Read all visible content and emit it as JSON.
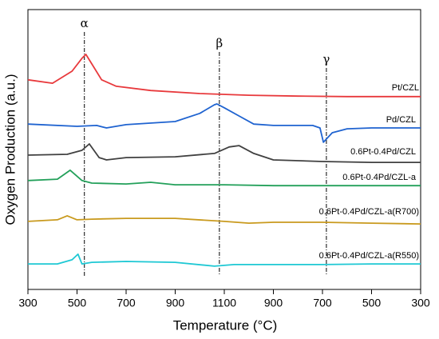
{
  "chart_data": {
    "type": "line",
    "xlabel": "Temperature (°C)",
    "ylabel": "Oxygen Production (a.u.)",
    "xlim": [
      0,
      8
    ],
    "ylim": [
      0,
      100
    ],
    "xticks": [
      {
        "value": 0,
        "label": "300"
      },
      {
        "value": 1,
        "label": "500"
      },
      {
        "value": 2,
        "label": "700"
      },
      {
        "value": 3,
        "label": "900"
      },
      {
        "value": 4,
        "label": "1100"
      },
      {
        "value": 5,
        "label": "900"
      },
      {
        "value": 6,
        "label": "700"
      },
      {
        "value": 7,
        "label": "500"
      },
      {
        "value": 8,
        "label": "300"
      }
    ],
    "annotations": [
      {
        "text": "α",
        "x": 1.15
      },
      {
        "text": "β",
        "x": 3.9
      },
      {
        "text": "γ",
        "x": 6.08
      }
    ],
    "series": [
      {
        "name": "Pt/CZL",
        "color": "#e8393c",
        "x": [
          0,
          0.5,
          0.9,
          1.1,
          1.18,
          1.3,
          1.5,
          1.8,
          2.5,
          3.5,
          4.5,
          5.5,
          6.5,
          7.5,
          8
        ],
        "values": [
          74.9,
          73.7,
          78,
          82.6,
          84,
          80.6,
          74.9,
          72.6,
          71.1,
          70,
          69.4,
          69.1,
          68.9,
          68.9,
          68.9
        ]
      },
      {
        "name": "Pd/CZL",
        "color": "#1f63d0",
        "x": [
          0,
          1,
          1.4,
          1.6,
          2,
          3,
          3.5,
          3.8,
          3.85,
          4,
          4.3,
          4.6,
          5,
          5.8,
          5.95,
          6.02,
          6.2,
          6.5,
          7,
          8
        ],
        "values": [
          59.1,
          58.3,
          58.6,
          57.7,
          58.9,
          60,
          62.9,
          66,
          66.3,
          64.9,
          62,
          59.1,
          58.6,
          58.6,
          57.7,
          52.6,
          56,
          57.4,
          57.7,
          57.7
        ]
      },
      {
        "name": "0.6Pt-0.4Pd/CZL",
        "color": "#404040",
        "x": [
          0,
          0.8,
          1.1,
          1.25,
          1.45,
          1.6,
          2,
          3,
          3.8,
          4.1,
          4.3,
          4.6,
          5,
          6,
          7,
          8
        ],
        "values": [
          48,
          48.3,
          49.7,
          52,
          47.1,
          46.3,
          47.1,
          47.4,
          48.6,
          50.9,
          51.4,
          48.6,
          46.3,
          45.7,
          45.4,
          45.4
        ]
      },
      {
        "name": "0.6Pt-0.4Pd/CZL-a",
        "color": "#23a05a",
        "x": [
          0,
          0.6,
          0.86,
          1.1,
          1.3,
          2,
          2.5,
          3,
          4,
          5,
          6,
          7,
          8
        ],
        "values": [
          38.9,
          39.4,
          42.6,
          38.9,
          38,
          37.7,
          38.3,
          37.4,
          37.4,
          37.1,
          37.1,
          37.1,
          37.1
        ]
      },
      {
        "name": "0.6Pt-0.4Pd/CZL-a(R700)",
        "color": "#c99a1e",
        "x": [
          0,
          0.6,
          0.8,
          1,
          1.3,
          2,
          3,
          4,
          4.5,
          5,
          6,
          7,
          8
        ],
        "values": [
          24.3,
          24.9,
          26.3,
          24.9,
          25.1,
          25.4,
          25.4,
          24.3,
          23.7,
          24,
          24,
          23.7,
          23.4
        ]
      },
      {
        "name": "0.6Pt-0.4Pd/CZL-a(R550)",
        "color": "#1ec8d4",
        "x": [
          0,
          0.6,
          0.9,
          1.02,
          1.1,
          1.3,
          2,
          3,
          3.8,
          4.2,
          5,
          6,
          7,
          8
        ],
        "values": [
          9.1,
          9.1,
          10.6,
          12.6,
          9.1,
          9.7,
          10,
          9.7,
          8.3,
          8.9,
          8.9,
          8.9,
          9.1,
          9.1
        ]
      }
    ]
  }
}
